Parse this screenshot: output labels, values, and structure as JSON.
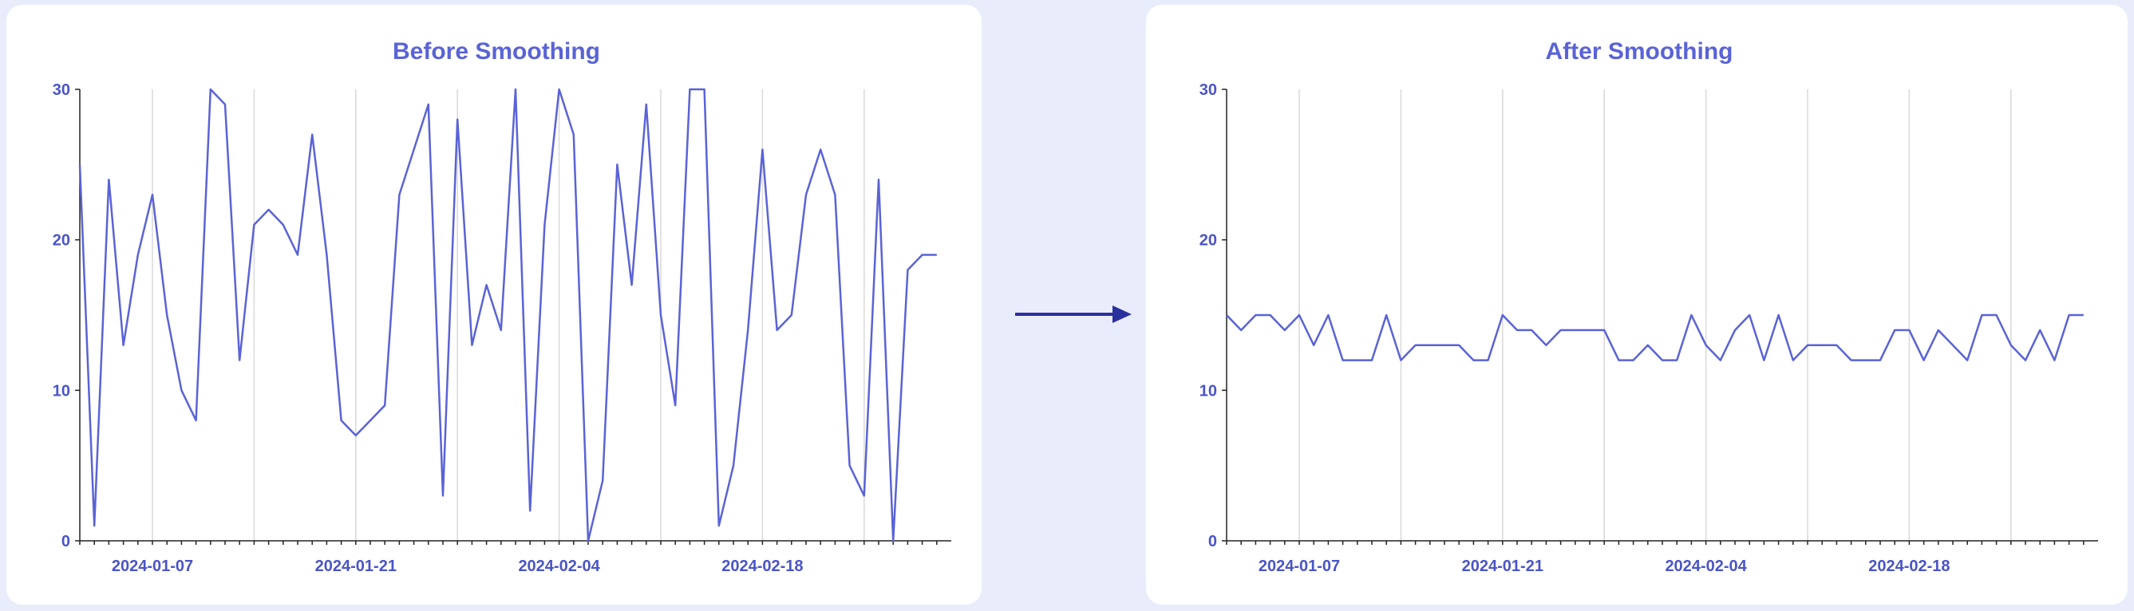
{
  "chart_data": [
    {
      "type": "line",
      "title": "Before Smoothing",
      "xlabel": "",
      "ylabel": "",
      "x_start": "2024-01-02",
      "x_end": "2024-03-01",
      "x_ticks": [
        "2024-01-07",
        "2024-01-21",
        "2024-02-04",
        "2024-02-18"
      ],
      "ylim": [
        0,
        30
      ],
      "y_ticks": [
        0,
        10,
        20,
        30
      ],
      "grid": "vertical",
      "color": "#5a63d6",
      "x": [
        "2024-01-02",
        "2024-01-03",
        "2024-01-04",
        "2024-01-05",
        "2024-01-06",
        "2024-01-07",
        "2024-01-08",
        "2024-01-09",
        "2024-01-10",
        "2024-01-11",
        "2024-01-12",
        "2024-01-13",
        "2024-01-14",
        "2024-01-15",
        "2024-01-16",
        "2024-01-17",
        "2024-01-18",
        "2024-01-19",
        "2024-01-20",
        "2024-01-21",
        "2024-01-22",
        "2024-01-23",
        "2024-01-24",
        "2024-01-25",
        "2024-01-26",
        "2024-01-27",
        "2024-01-28",
        "2024-01-29",
        "2024-01-30",
        "2024-01-31",
        "2024-02-01",
        "2024-02-02",
        "2024-02-03",
        "2024-02-04",
        "2024-02-05",
        "2024-02-06",
        "2024-02-07",
        "2024-02-08",
        "2024-02-09",
        "2024-02-10",
        "2024-02-11",
        "2024-02-12",
        "2024-02-13",
        "2024-02-14",
        "2024-02-15",
        "2024-02-16",
        "2024-02-17",
        "2024-02-18",
        "2024-02-19",
        "2024-02-20",
        "2024-02-21",
        "2024-02-22",
        "2024-02-23",
        "2024-02-24",
        "2024-02-25",
        "2024-02-26",
        "2024-02-27",
        "2024-02-28",
        "2024-02-29",
        "2024-03-01"
      ],
      "values": [
        25,
        1,
        24,
        13,
        19,
        23,
        15,
        10,
        8,
        30,
        29,
        12,
        21,
        22,
        21,
        19,
        27,
        19,
        8,
        7,
        8,
        9,
        23,
        26,
        29,
        3,
        28,
        13,
        17,
        14,
        30,
        2,
        21,
        30,
        27,
        0,
        4,
        25,
        17,
        29,
        15,
        9,
        30,
        30,
        1,
        5,
        14,
        26,
        14,
        15,
        23,
        26,
        23,
        5,
        3,
        24,
        0,
        18,
        19,
        19
      ]
    },
    {
      "type": "line",
      "title": "After Smoothing",
      "xlabel": "",
      "ylabel": "",
      "x_start": "2024-01-02",
      "x_end": "2024-03-01",
      "x_ticks": [
        "2024-01-07",
        "2024-01-21",
        "2024-02-04",
        "2024-02-18"
      ],
      "ylim": [
        0,
        30
      ],
      "y_ticks": [
        0,
        10,
        20,
        30
      ],
      "grid": "vertical",
      "color": "#5a63d6",
      "x": [
        "2024-01-02",
        "2024-01-03",
        "2024-01-04",
        "2024-01-05",
        "2024-01-06",
        "2024-01-07",
        "2024-01-08",
        "2024-01-09",
        "2024-01-10",
        "2024-01-11",
        "2024-01-12",
        "2024-01-13",
        "2024-01-14",
        "2024-01-15",
        "2024-01-16",
        "2024-01-17",
        "2024-01-18",
        "2024-01-19",
        "2024-01-20",
        "2024-01-21",
        "2024-01-22",
        "2024-01-23",
        "2024-01-24",
        "2024-01-25",
        "2024-01-26",
        "2024-01-27",
        "2024-01-28",
        "2024-01-29",
        "2024-01-30",
        "2024-01-31",
        "2024-02-01",
        "2024-02-02",
        "2024-02-03",
        "2024-02-04",
        "2024-02-05",
        "2024-02-06",
        "2024-02-07",
        "2024-02-08",
        "2024-02-09",
        "2024-02-10",
        "2024-02-11",
        "2024-02-12",
        "2024-02-13",
        "2024-02-14",
        "2024-02-15",
        "2024-02-16",
        "2024-02-17",
        "2024-02-18",
        "2024-02-19",
        "2024-02-20",
        "2024-02-21",
        "2024-02-22",
        "2024-02-23",
        "2024-02-24",
        "2024-02-25",
        "2024-02-26",
        "2024-02-27",
        "2024-02-28",
        "2024-02-29",
        "2024-03-01"
      ],
      "values": [
        15,
        14,
        15,
        15,
        14,
        15,
        13,
        15,
        12,
        12,
        12,
        15,
        12,
        13,
        13,
        13,
        13,
        12,
        12,
        15,
        14,
        14,
        13,
        14,
        14,
        14,
        14,
        12,
        12,
        13,
        12,
        12,
        15,
        13,
        12,
        14,
        15,
        12,
        15,
        12,
        13,
        13,
        13,
        12,
        12,
        12,
        14,
        14,
        12,
        14,
        13,
        12,
        15,
        15,
        13,
        12,
        14,
        12,
        15,
        15
      ]
    }
  ]
}
